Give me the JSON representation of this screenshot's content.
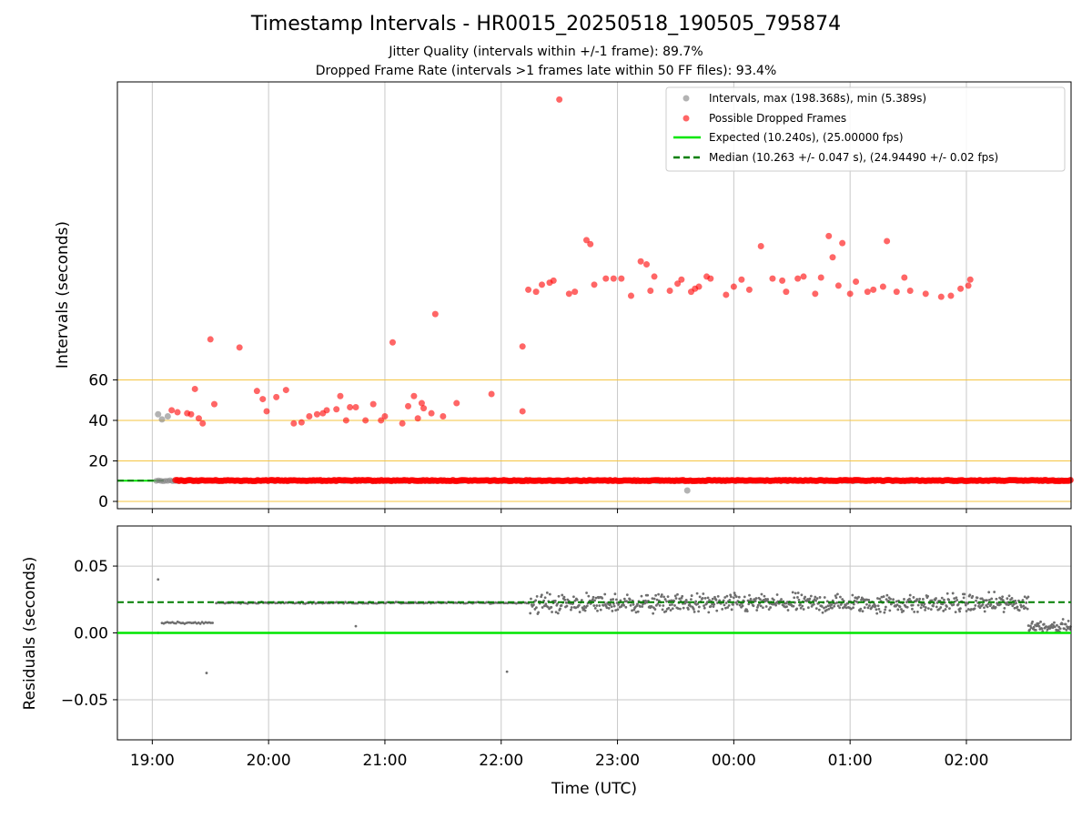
{
  "figure": {
    "title": "Timestamp Intervals - HR0015_20250518_190505_795874",
    "subtitle_1": "Jitter Quality (intervals within +/-1 frame): 89.7%",
    "subtitle_2": "Dropped Frame Rate (intervals >1 frames late within 50 FF files): 93.4%"
  },
  "colors": {
    "interval_points": "#808080",
    "dropped_points": "#ff0000",
    "expected_line": "#00e600",
    "median_line": "#007f00",
    "threshold_lines": "#f5c542",
    "grid": "#c8c8c8",
    "residual_points": "#6e6e6e"
  },
  "chart_data": [
    {
      "type": "scatter",
      "name_key": "intervals",
      "ylabel": "Intervals (seconds)",
      "xlabel": "",
      "y_ticks": [
        0,
        20,
        40,
        60
      ],
      "y_tick_labels": [
        "0",
        "20",
        "40",
        "60"
      ],
      "threshold_lines": [
        0,
        20,
        40,
        60
      ],
      "x_grid_hours": [
        "19:00",
        "20:00",
        "21:00",
        "22:00",
        "23:00",
        "00:00",
        "01:00",
        "02:00"
      ],
      "x_range": [
        "18:42",
        "02:54"
      ],
      "legend_position": "top-right",
      "legend": [
        "Intervals, max (198.368s), min (5.389s)",
        "Possible Dropped Frames",
        "Expected (10.240s), (25.00000 fps)",
        "Median (10.263 +/- 0.047 s), (24.94490 +/- 0.02 fps)"
      ],
      "series": [
        {
          "name": "Intervals, max (198.368s), min (5.389s)",
          "points": [
            [
              "19:03",
              43.0
            ],
            [
              "19:05",
              40.5
            ],
            [
              "19:08",
              42.0
            ],
            [
              "23:36",
              5.4
            ]
          ],
          "baseline_value": 10.24,
          "baseline_span": [
            "19:02",
            "02:54"
          ]
        },
        {
          "name": "Possible Dropped Frames",
          "baseline_value": 10.3,
          "baseline_span": [
            "19:12",
            "02:54"
          ],
          "points": [
            [
              "19:10",
              45.0
            ],
            [
              "19:13",
              44.0
            ],
            [
              "19:18",
              43.5
            ],
            [
              "19:20",
              43.0
            ],
            [
              "19:22",
              55.5
            ],
            [
              "19:24",
              41.0
            ],
            [
              "19:26",
              38.5
            ],
            [
              "19:30",
              80.0
            ],
            [
              "19:32",
              48.0
            ],
            [
              "19:45",
              76.0
            ],
            [
              "19:54",
              54.5
            ],
            [
              "19:57",
              50.5
            ],
            [
              "19:59",
              44.5
            ],
            [
              "20:04",
              51.5
            ],
            [
              "20:09",
              55.0
            ],
            [
              "20:13",
              38.5
            ],
            [
              "20:17",
              39.0
            ],
            [
              "20:21",
              42.0
            ],
            [
              "20:25",
              43.0
            ],
            [
              "20:28",
              43.5
            ],
            [
              "20:30",
              45.0
            ],
            [
              "20:35",
              45.5
            ],
            [
              "20:37",
              52.0
            ],
            [
              "20:40",
              40.0
            ],
            [
              "20:42",
              46.5
            ],
            [
              "20:45",
              46.5
            ],
            [
              "20:50",
              40.0
            ],
            [
              "20:54",
              48.0
            ],
            [
              "20:58",
              40.0
            ],
            [
              "21:00",
              42.0
            ],
            [
              "21:04",
              78.5
            ],
            [
              "21:09",
              38.5
            ],
            [
              "21:12",
              47.0
            ],
            [
              "21:15",
              52.0
            ],
            [
              "21:17",
              41.0
            ],
            [
              "21:19",
              48.5
            ],
            [
              "21:20",
              46.0
            ],
            [
              "21:24",
              43.5
            ],
            [
              "21:26",
              92.5
            ],
            [
              "21:30",
              42.0
            ],
            [
              "21:37",
              48.5
            ],
            [
              "21:55",
              53.0
            ],
            [
              "22:11",
              44.5
            ],
            [
              "22:11",
              76.5
            ],
            [
              "22:14",
              104.5
            ],
            [
              "22:18",
              103.5
            ],
            [
              "22:21",
              107.0
            ],
            [
              "22:25",
              108.0
            ],
            [
              "22:27",
              109.0
            ],
            [
              "22:30",
              198.4
            ],
            [
              "22:35",
              102.5
            ],
            [
              "22:38",
              103.5
            ],
            [
              "22:44",
              129.0
            ],
            [
              "22:46",
              127.0
            ],
            [
              "22:48",
              107.0
            ],
            [
              "22:54",
              110.0
            ],
            [
              "22:58",
              110.0
            ],
            [
              "23:02",
              110.0
            ],
            [
              "23:07",
              101.5
            ],
            [
              "23:12",
              118.5
            ],
            [
              "23:15",
              117.0
            ],
            [
              "23:17",
              104.0
            ],
            [
              "23:19",
              111.0
            ],
            [
              "23:27",
              104.0
            ],
            [
              "23:31",
              107.5
            ],
            [
              "23:33",
              109.5
            ],
            [
              "23:38",
              103.5
            ],
            [
              "23:40",
              105.0
            ],
            [
              "23:42",
              106.0
            ],
            [
              "23:46",
              111.0
            ],
            [
              "23:48",
              110.0
            ],
            [
              "23:56",
              102.0
            ],
            [
              "24:00",
              106.0
            ],
            [
              "24:04",
              109.5
            ],
            [
              "24:08",
              104.5
            ],
            [
              "24:14",
              126.0
            ],
            [
              "24:20",
              110.0
            ],
            [
              "24:25",
              109.0
            ],
            [
              "24:27",
              103.5
            ],
            [
              "24:33",
              110.0
            ],
            [
              "24:36",
              111.0
            ],
            [
              "24:42",
              102.5
            ],
            [
              "24:45",
              110.5
            ],
            [
              "24:49",
              131.0
            ],
            [
              "24:51",
              120.5
            ],
            [
              "24:54",
              106.5
            ],
            [
              "24:56",
              127.5
            ],
            [
              "25:00",
              102.5
            ],
            [
              "25:03",
              108.5
            ],
            [
              "25:09",
              103.5
            ],
            [
              "25:12",
              104.5
            ],
            [
              "25:17",
              106.0
            ],
            [
              "25:19",
              128.5
            ],
            [
              "25:24",
              103.5
            ],
            [
              "25:28",
              110.5
            ],
            [
              "25:31",
              104.0
            ],
            [
              "25:39",
              102.5
            ],
            [
              "25:47",
              101.0
            ],
            [
              "25:52",
              101.5
            ],
            [
              "25:57",
              105.0
            ],
            [
              "26:01",
              106.5
            ],
            [
              "26:02",
              109.5
            ]
          ]
        }
      ],
      "reference_lines": [
        {
          "name": "Expected (10.240s), (25.00000 fps)",
          "value": 10.24
        },
        {
          "name": "Median (10.263 +/- 0.047 s), (24.94490 +/- 0.02 fps)",
          "value": 10.263
        }
      ]
    },
    {
      "type": "scatter",
      "name_key": "residuals",
      "ylabel": "Residuals (seconds)",
      "xlabel": "Time (UTC)",
      "ylim": [
        -0.08,
        0.08
      ],
      "y_ticks": [
        -0.05,
        0.0,
        0.05
      ],
      "y_tick_labels": [
        "−0.05",
        "0.00",
        "0.05"
      ],
      "x_tick_labels": [
        "19:00",
        "20:00",
        "21:00",
        "22:00",
        "23:00",
        "00:00",
        "01:00",
        "02:00"
      ],
      "x_range": [
        "18:42",
        "02:54"
      ],
      "reference_lines": [
        {
          "name": "Expected",
          "value": 0.0
        },
        {
          "name": "Median",
          "value": 0.023
        }
      ],
      "outliers": [
        [
          "19:03",
          0.04
        ],
        [
          "19:03",
          0.0
        ],
        [
          "19:28",
          -0.03
        ],
        [
          "20:45",
          0.005
        ],
        [
          "22:03",
          -0.029
        ]
      ],
      "segments": [
        {
          "span": [
            "19:05",
            "19:32"
          ],
          "center": 0.0075,
          "spread": 0.0007
        },
        {
          "span": [
            "19:33",
            "22:15"
          ],
          "center": 0.0225,
          "spread": 0.0005
        },
        {
          "span": [
            "22:15",
            "02:32"
          ],
          "center": 0.022,
          "spread": 0.0065
        },
        {
          "span": [
            "02:32",
            "02:54"
          ],
          "center": 0.005,
          "spread": 0.004
        }
      ]
    }
  ]
}
